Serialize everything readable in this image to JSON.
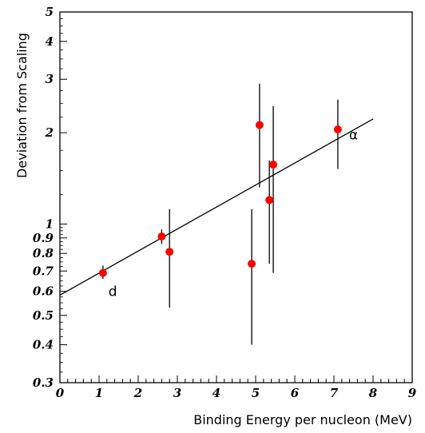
{
  "chart_data": {
    "type": "scatter",
    "title": "",
    "xlabel": "Binding Energy per nucleon (MeV)",
    "ylabel": "Deviation from Scaling",
    "xlim": [
      0,
      9
    ],
    "ylim": [
      0.3,
      5
    ],
    "yscale": "log",
    "x_ticks": [
      "0",
      "1",
      "2",
      "3",
      "4",
      "5",
      "6",
      "7",
      "8",
      "9"
    ],
    "y_ticks": [
      {
        "value": 0.3,
        "label": "0.3"
      },
      {
        "value": 0.4,
        "label": "0.4"
      },
      {
        "value": 0.5,
        "label": "0.5"
      },
      {
        "value": 0.6,
        "label": "0.6"
      },
      {
        "value": 0.7,
        "label": "0.7"
      },
      {
        "value": 0.8,
        "label": "0.8"
      },
      {
        "value": 0.9,
        "label": "0.9"
      },
      {
        "value": 1,
        "label": "1"
      },
      {
        "value": 2,
        "label": "2"
      },
      {
        "value": 3,
        "label": "3"
      },
      {
        "value": 4,
        "label": "4"
      },
      {
        "value": 5,
        "label": "5"
      }
    ],
    "points": [
      {
        "x": 1.1,
        "y": 0.69,
        "ylow": 0.66,
        "yhigh": 0.73
      },
      {
        "x": 2.6,
        "y": 0.91,
        "ylow": 0.86,
        "yhigh": 0.96
      },
      {
        "x": 2.8,
        "y": 0.81,
        "ylow": 0.53,
        "yhigh": 1.12
      },
      {
        "x": 4.9,
        "y": 0.74,
        "ylow": 0.4,
        "yhigh": 1.12
      },
      {
        "x": 5.1,
        "y": 2.12,
        "ylow": 1.32,
        "yhigh": 2.9
      },
      {
        "x": 5.35,
        "y": 1.2,
        "ylow": 0.74,
        "yhigh": 1.62
      },
      {
        "x": 5.45,
        "y": 1.57,
        "ylow": 0.69,
        "yhigh": 2.45
      },
      {
        "x": 7.1,
        "y": 2.05,
        "ylow": 1.52,
        "yhigh": 2.57
      }
    ],
    "fit_line": {
      "x": [
        0,
        8
      ],
      "y": [
        0.583,
        2.22
      ]
    },
    "annotations": [
      {
        "text": "d",
        "x": 1.35,
        "y": 0.58
      },
      {
        "text": "α",
        "x": 7.5,
        "y": 1.9
      }
    ],
    "marker_color": "#ff0000",
    "grid": false
  }
}
